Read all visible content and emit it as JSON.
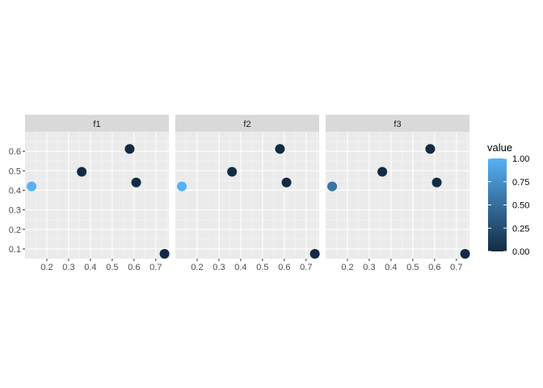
{
  "chart_data": {
    "type": "scatter",
    "facets": [
      {
        "label": "f1",
        "points": [
          {
            "x": 0.13,
            "y": 0.42,
            "value": 1.0
          },
          {
            "x": 0.36,
            "y": 0.495,
            "value": 0.0
          },
          {
            "x": 0.58,
            "y": 0.612,
            "value": 0.0
          },
          {
            "x": 0.61,
            "y": 0.44,
            "value": 0.0
          },
          {
            "x": 0.74,
            "y": 0.075,
            "value": 0.0
          }
        ]
      },
      {
        "label": "f2",
        "points": [
          {
            "x": 0.13,
            "y": 0.42,
            "value": 1.0
          },
          {
            "x": 0.36,
            "y": 0.495,
            "value": 0.0
          },
          {
            "x": 0.58,
            "y": 0.612,
            "value": 0.0
          },
          {
            "x": 0.61,
            "y": 0.44,
            "value": 0.0
          },
          {
            "x": 0.74,
            "y": 0.075,
            "value": 0.0
          }
        ]
      },
      {
        "label": "f3",
        "points": [
          {
            "x": 0.13,
            "y": 0.42,
            "value": 0.55
          },
          {
            "x": 0.36,
            "y": 0.495,
            "value": 0.0
          },
          {
            "x": 0.58,
            "y": 0.612,
            "value": 0.0
          },
          {
            "x": 0.61,
            "y": 0.44,
            "value": 0.0
          },
          {
            "x": 0.74,
            "y": 0.075,
            "value": 0.0
          }
        ]
      }
    ],
    "xlim": [
      0.1,
      0.76
    ],
    "ylim": [
      0.05,
      0.7
    ],
    "x_ticks": [
      0.2,
      0.3,
      0.4,
      0.5,
      0.6,
      0.7
    ],
    "x_tick_labels": [
      "0.2",
      "0.3",
      "0.4",
      "0.5",
      "0.6",
      "0.7"
    ],
    "y_ticks": [
      0.1,
      0.2,
      0.3,
      0.4,
      0.5,
      0.6
    ],
    "y_tick_labels": [
      "0.1",
      "0.2",
      "0.3",
      "0.4",
      "0.5",
      "0.6"
    ],
    "grid": true,
    "legend": {
      "title": "value",
      "position": "right",
      "breaks": [
        1.0,
        0.75,
        0.5,
        0.25,
        0.0
      ],
      "labels": [
        "1.00",
        "0.75",
        "0.50",
        "0.25",
        "0.00"
      ],
      "low_color": "#132B43",
      "high_color": "#56B1F7"
    },
    "colors": {
      "panel_bg": "#EBEBEB",
      "strip_bg": "#D9D9D9",
      "grid_major": "#FFFFFF"
    }
  }
}
